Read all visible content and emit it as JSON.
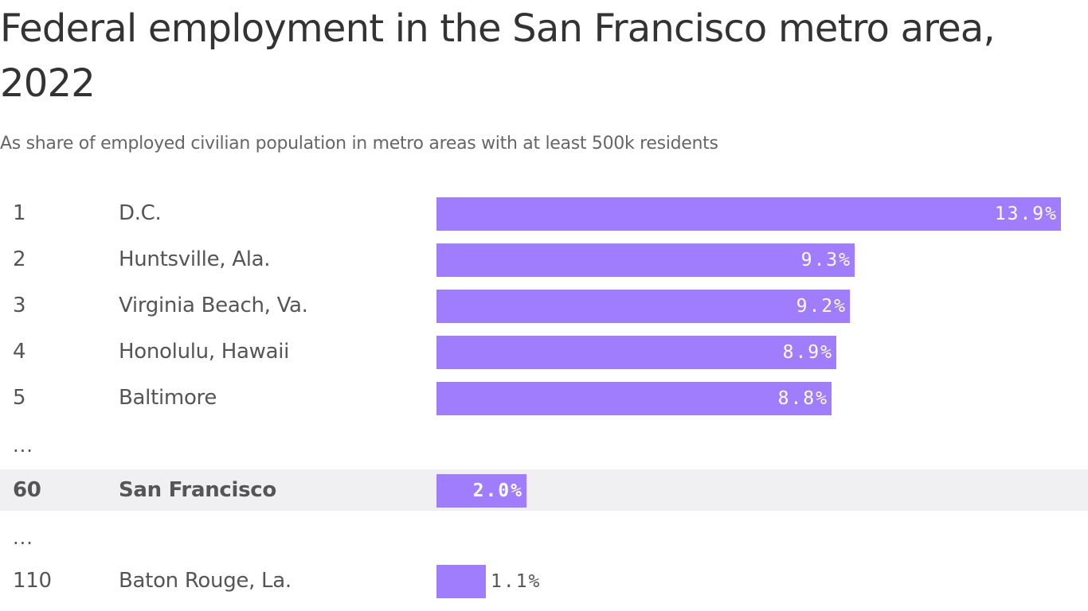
{
  "chart_data": {
    "type": "bar",
    "orientation": "horizontal",
    "title": "Federal employment in the San Francisco metro area, 2022",
    "subtitle": "As share of employed civilian population in metro areas with at least 500k residents",
    "bar_color": "#a07dfd",
    "highlight_background": "#f0f0f2",
    "value_suffix": "%",
    "xlim": [
      0,
      13.9
    ],
    "ellipsis_text": "...",
    "rows": [
      {
        "kind": "bar",
        "rank": "1",
        "name": "D.C.",
        "value": 13.9,
        "label": "13.9%"
      },
      {
        "kind": "bar",
        "rank": "2",
        "name": "Huntsville, Ala.",
        "value": 9.3,
        "label": "9.3%"
      },
      {
        "kind": "bar",
        "rank": "3",
        "name": "Virginia Beach, Va.",
        "value": 9.2,
        "label": "9.2%"
      },
      {
        "kind": "bar",
        "rank": "4",
        "name": "Honolulu, Hawaii",
        "value": 8.9,
        "label": "8.9%"
      },
      {
        "kind": "bar",
        "rank": "5",
        "name": "Baltimore",
        "value": 8.8,
        "label": "8.8%"
      },
      {
        "kind": "ellipsis"
      },
      {
        "kind": "bar",
        "rank": "60",
        "name": "San Francisco",
        "value": 2.0,
        "label": "2.0%",
        "highlight": true
      },
      {
        "kind": "ellipsis"
      },
      {
        "kind": "bar",
        "rank": "110",
        "name": "Baton Rouge, La.",
        "value": 1.1,
        "label": "1.1%"
      }
    ]
  }
}
